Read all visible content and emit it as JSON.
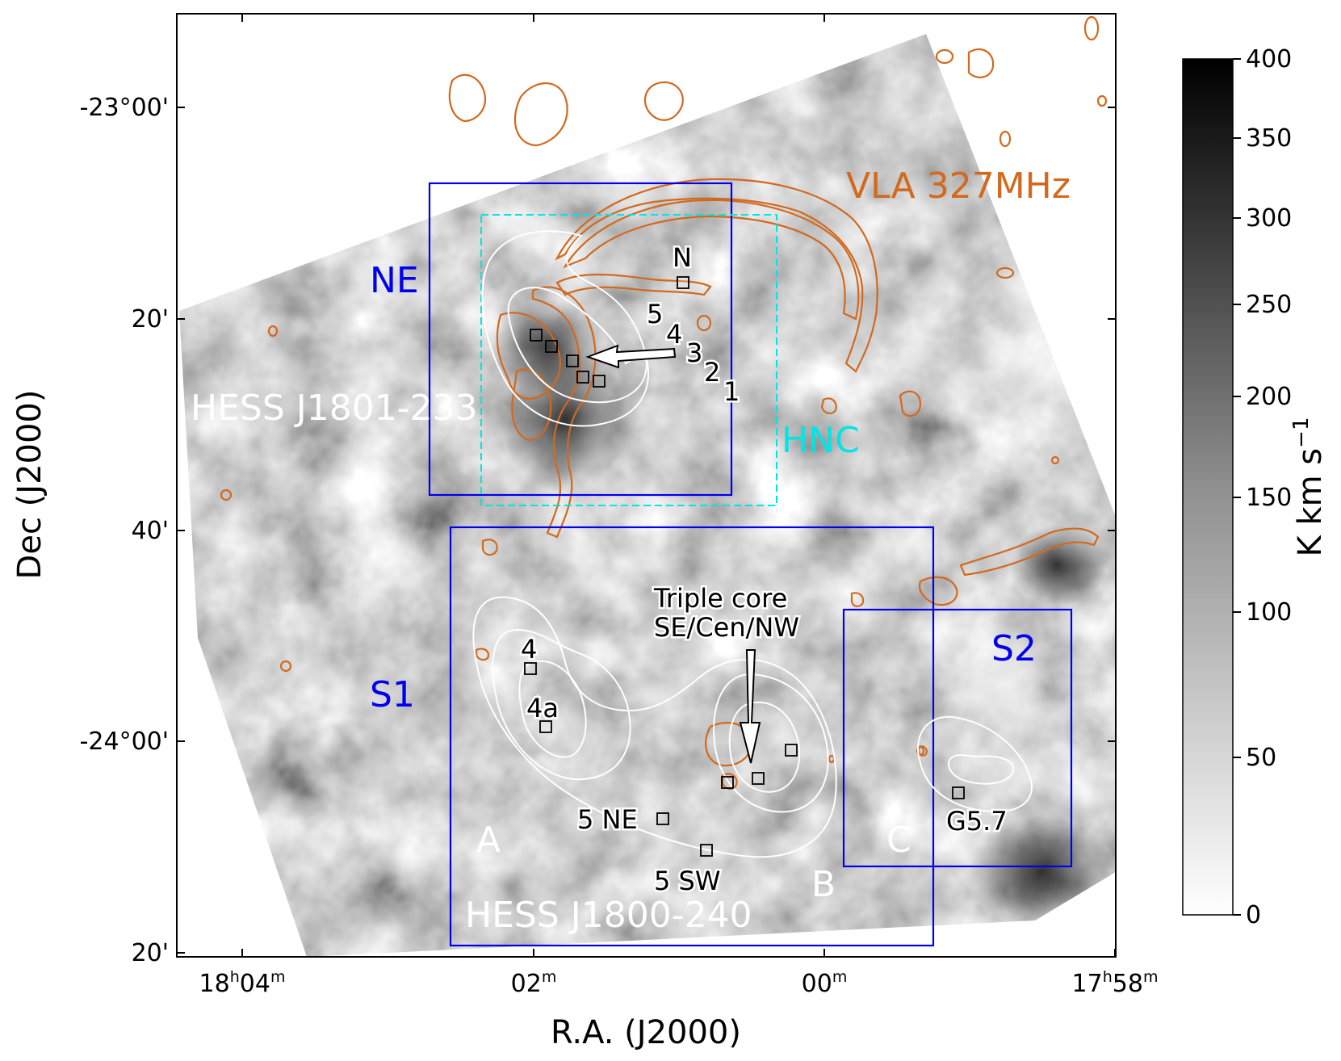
{
  "chart_data": {
    "type": "heatmap",
    "xlabel": "R.A. (J2000)",
    "ylabel": "Dec (J2000)",
    "x_ticks": [
      {
        "h": "18",
        "m": "04"
      },
      {
        "h": "",
        "m": "02"
      },
      {
        "h": "",
        "m": "00"
      },
      {
        "h": "17",
        "m": "58"
      }
    ],
    "y_ticks": [
      "-23°00'",
      "20'",
      "40'",
      "-24°00'",
      "20'"
    ],
    "colorbar": {
      "label": "K km s",
      "label_sup": "−1",
      "ticks": [
        "400",
        "350",
        "300",
        "250",
        "200",
        "150",
        "100",
        "50",
        "0"
      ],
      "range": [
        0,
        400
      ]
    },
    "overlay_label": "VLA 327MHz",
    "region_labels": [
      {
        "name": "NE",
        "color": "#0000ee"
      },
      {
        "name": "HNC",
        "color": "#00e5e5"
      },
      {
        "name": "S1",
        "color": "#0000ee"
      },
      {
        "name": "S2",
        "color": "#0000ee"
      }
    ],
    "source_names": [
      "HESS J1801-233",
      "HESS J1800-240"
    ],
    "hess_components": [
      "A",
      "B",
      "C"
    ],
    "ne_markers": [
      "N",
      "5",
      "4",
      "3",
      "2",
      "1"
    ],
    "s_markers": [
      "4",
      "4a",
      "5 NE",
      "5 SW",
      "G5.7"
    ],
    "annotation": {
      "line1": "Triple core",
      "line2": "SE/Cen/NW"
    },
    "colors": {
      "radio": "#d2691e",
      "tev": "#ffffff",
      "box": "#0000ee",
      "hnc": "#00e5e5"
    }
  }
}
